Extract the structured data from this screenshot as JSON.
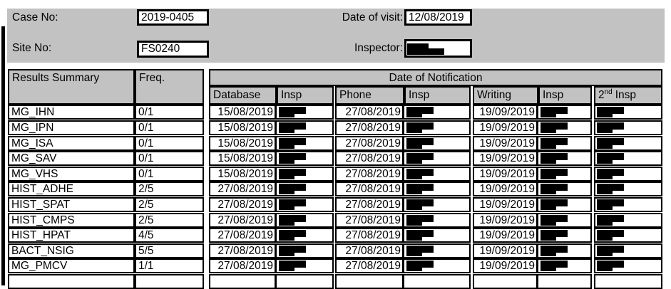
{
  "form": {
    "case_no_label": "Case No:",
    "case_no_value": "2019-0405",
    "site_no_label": "Site No:",
    "site_no_value": "FS0240",
    "date_of_visit_label": "Date of visit:",
    "date_of_visit_value": "12/08/2019",
    "inspector_label": "Inspector:",
    "inspector_value": ""
  },
  "table": {
    "col1_header": "Results Summary",
    "col2_header": "Freq.",
    "group_header": "Date of Notification",
    "sub_headers": [
      "Database",
      "Insp",
      "Phone",
      "Insp",
      "Writing",
      "Insp"
    ],
    "sub_header_last": {
      "base": "2",
      "sup": "nd",
      "rest": "Insp"
    },
    "rows": [
      {
        "name": "MG_IHN",
        "freq": "0/1",
        "database": "15/08/2019",
        "phone": "27/08/2019",
        "writing": "19/09/2019"
      },
      {
        "name": "MG_IPN",
        "freq": "0/1",
        "database": "15/08/2019",
        "phone": "27/08/2019",
        "writing": "19/09/2019"
      },
      {
        "name": "MG_ISA",
        "freq": "0/1",
        "database": "15/08/2019",
        "phone": "27/08/2019",
        "writing": "19/09/2019"
      },
      {
        "name": "MG_SAV",
        "freq": "0/1",
        "database": "15/08/2019",
        "phone": "27/08/2019",
        "writing": "19/09/2019"
      },
      {
        "name": "MG_VHS",
        "freq": "0/1",
        "database": "15/08/2019",
        "phone": "27/08/2019",
        "writing": "19/09/2019"
      },
      {
        "name": "HIST_ADHE",
        "freq": "2/5",
        "database": "27/08/2019",
        "phone": "27/08/2019",
        "writing": "19/09/2019"
      },
      {
        "name": "HIST_SPAT",
        "freq": "2/5",
        "database": "27/08/2019",
        "phone": "27/08/2019",
        "writing": "19/09/2019"
      },
      {
        "name": "HIST_CMPS",
        "freq": "2/5",
        "database": "27/08/2019",
        "phone": "27/08/2019",
        "writing": "19/09/2019"
      },
      {
        "name": "HIST_HPAT",
        "freq": "4/5",
        "database": "27/08/2019",
        "phone": "27/08/2019",
        "writing": "19/09/2019"
      },
      {
        "name": "BACT_NSIG",
        "freq": "5/5",
        "database": "27/08/2019",
        "phone": "27/08/2019",
        "writing": "19/09/2019"
      },
      {
        "name": "MG_PMCV",
        "freq": "1/1",
        "database": "27/08/2019",
        "phone": "27/08/2019",
        "writing": "19/09/2019"
      }
    ],
    "trailing_empty_row": true
  },
  "colors": {
    "band_gray": "#c2c2c2",
    "cell_bg": "#ffffff",
    "border": "#000000",
    "redaction": "#000000"
  }
}
